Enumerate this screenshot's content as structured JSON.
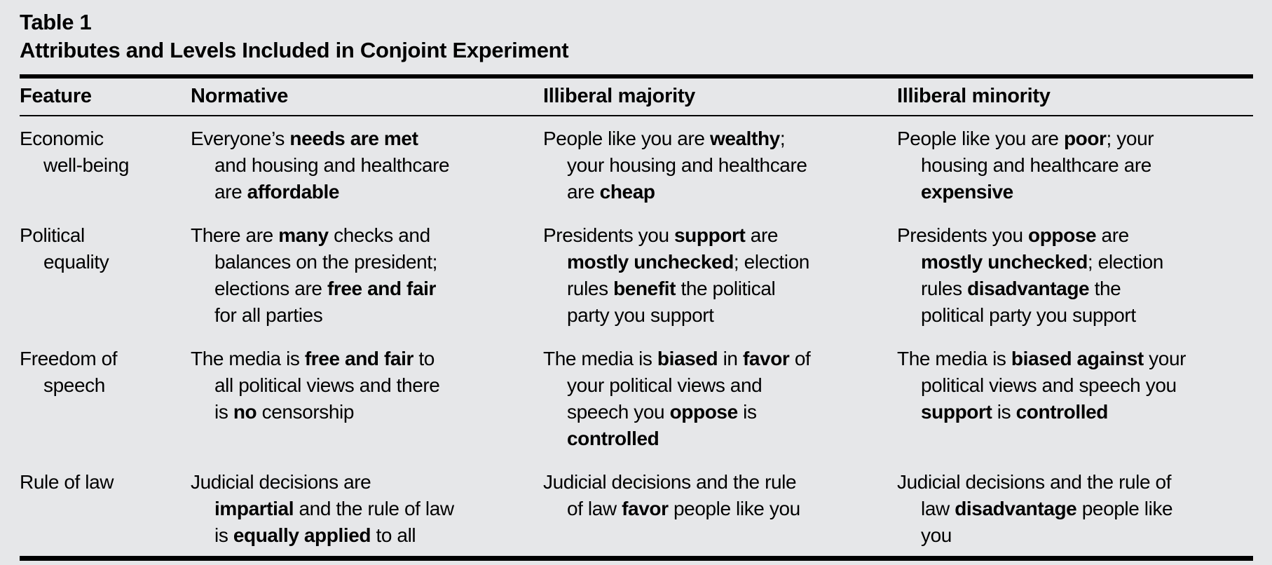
{
  "colors": {
    "background": "#e6e7e9",
    "text": "#000000",
    "rule": "#000000"
  },
  "title": {
    "label": "Table 1",
    "subtitle": "Attributes and Levels Included in Conjoint Experiment"
  },
  "table": {
    "headers": [
      "Feature",
      "Normative",
      "Illiberal majority",
      "Illiberal minority"
    ],
    "column_keys": [
      "feature",
      "normative",
      "illiberal-majority",
      "illiberal-minority"
    ],
    "rows": [
      {
        "cells": [
          [
            [
              {
                "t": "Economic"
              }
            ],
            [
              {
                "t": "well-being"
              }
            ]
          ],
          [
            [
              {
                "t": "Everyone’s "
              },
              {
                "t": "needs are met",
                "b": true
              }
            ],
            [
              {
                "t": "and housing and healthcare"
              }
            ],
            [
              {
                "t": "are "
              },
              {
                "t": "affordable",
                "b": true
              }
            ]
          ],
          [
            [
              {
                "t": "People like you are "
              },
              {
                "t": "wealthy",
                "b": true
              },
              {
                "t": ";"
              }
            ],
            [
              {
                "t": "your housing and healthcare"
              }
            ],
            [
              {
                "t": "are "
              },
              {
                "t": "cheap",
                "b": true
              }
            ]
          ],
          [
            [
              {
                "t": "People like you are "
              },
              {
                "t": "poor",
                "b": true
              },
              {
                "t": "; your"
              }
            ],
            [
              {
                "t": "housing and healthcare are"
              }
            ],
            [
              {
                "t": "expensive",
                "b": true
              }
            ]
          ]
        ]
      },
      {
        "cells": [
          [
            [
              {
                "t": "Political"
              }
            ],
            [
              {
                "t": "equality"
              }
            ]
          ],
          [
            [
              {
                "t": "There are "
              },
              {
                "t": "many",
                "b": true
              },
              {
                "t": " checks and"
              }
            ],
            [
              {
                "t": "balances on the president;"
              }
            ],
            [
              {
                "t": "elections are "
              },
              {
                "t": "free and fair",
                "b": true
              }
            ],
            [
              {
                "t": "for all parties"
              }
            ]
          ],
          [
            [
              {
                "t": "Presidents you "
              },
              {
                "t": "support",
                "b": true
              },
              {
                "t": " are"
              }
            ],
            [
              {
                "t": "mostly unchecked",
                "b": true
              },
              {
                "t": "; election"
              }
            ],
            [
              {
                "t": "rules "
              },
              {
                "t": "benefit",
                "b": true
              },
              {
                "t": " the political"
              }
            ],
            [
              {
                "t": "party you support"
              }
            ]
          ],
          [
            [
              {
                "t": "Presidents you "
              },
              {
                "t": "oppose",
                "b": true
              },
              {
                "t": " are"
              }
            ],
            [
              {
                "t": "mostly unchecked",
                "b": true
              },
              {
                "t": "; election"
              }
            ],
            [
              {
                "t": "rules "
              },
              {
                "t": "disadvantage",
                "b": true
              },
              {
                "t": " the"
              }
            ],
            [
              {
                "t": "political party you support"
              }
            ]
          ]
        ]
      },
      {
        "cells": [
          [
            [
              {
                "t": "Freedom of"
              }
            ],
            [
              {
                "t": "speech"
              }
            ]
          ],
          [
            [
              {
                "t": "The media is "
              },
              {
                "t": "free and fair",
                "b": true
              },
              {
                "t": " to"
              }
            ],
            [
              {
                "t": "all political views and there"
              }
            ],
            [
              {
                "t": "is "
              },
              {
                "t": "no",
                "b": true
              },
              {
                "t": " censorship"
              }
            ]
          ],
          [
            [
              {
                "t": "The media is "
              },
              {
                "t": "biased",
                "b": true
              },
              {
                "t": " in "
              },
              {
                "t": "favor",
                "b": true
              },
              {
                "t": " of"
              }
            ],
            [
              {
                "t": "your political views and"
              }
            ],
            [
              {
                "t": "speech you "
              },
              {
                "t": "oppose",
                "b": true
              },
              {
                "t": " is"
              }
            ],
            [
              {
                "t": "controlled",
                "b": true
              }
            ]
          ],
          [
            [
              {
                "t": "The media is "
              },
              {
                "t": "biased against",
                "b": true
              },
              {
                "t": " your"
              }
            ],
            [
              {
                "t": "political views and speech you"
              }
            ],
            [
              {
                "t": "support",
                "b": true
              },
              {
                "t": " is "
              },
              {
                "t": "controlled",
                "b": true
              }
            ]
          ]
        ]
      },
      {
        "cells": [
          [
            [
              {
                "t": "Rule of law"
              }
            ]
          ],
          [
            [
              {
                "t": "Judicial decisions are"
              }
            ],
            [
              {
                "t": "impartial",
                "b": true
              },
              {
                "t": " and the rule of law"
              }
            ],
            [
              {
                "t": "is "
              },
              {
                "t": "equally applied",
                "b": true
              },
              {
                "t": " to all"
              }
            ]
          ],
          [
            [
              {
                "t": "Judicial decisions and the rule"
              }
            ],
            [
              {
                "t": "of law "
              },
              {
                "t": "favor",
                "b": true
              },
              {
                "t": " people like you"
              }
            ]
          ],
          [
            [
              {
                "t": "Judicial decisions and the rule of"
              }
            ],
            [
              {
                "t": "law "
              },
              {
                "t": "disadvantage",
                "b": true
              },
              {
                "t": " people like"
              }
            ],
            [
              {
                "t": "you"
              }
            ]
          ]
        ]
      }
    ]
  }
}
